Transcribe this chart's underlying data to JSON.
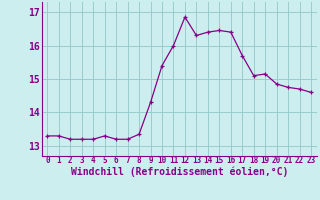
{
  "hours": [
    0,
    1,
    2,
    3,
    4,
    5,
    6,
    7,
    8,
    9,
    10,
    11,
    12,
    13,
    14,
    15,
    16,
    17,
    18,
    19,
    20,
    21,
    22,
    23
  ],
  "windchill": [
    13.3,
    13.3,
    13.2,
    13.2,
    13.2,
    13.3,
    13.2,
    13.2,
    13.35,
    14.3,
    15.4,
    16.0,
    16.85,
    16.3,
    16.4,
    16.45,
    16.4,
    15.7,
    15.1,
    15.15,
    14.85,
    14.75,
    14.7,
    14.6
  ],
  "line_color": "#880088",
  "marker": "+",
  "bg_color": "#cceeee",
  "grid_color": "#99cccc",
  "xlabel": "Windchill (Refroidissement éolien,°C)",
  "xlabel_color": "#880088",
  "tick_color": "#880088",
  "ylim": [
    12.7,
    17.3
  ],
  "yticks": [
    13,
    14,
    15,
    16,
    17
  ],
  "xticks": [
    0,
    1,
    2,
    3,
    4,
    5,
    6,
    7,
    8,
    9,
    10,
    11,
    12,
    13,
    14,
    15,
    16,
    17,
    18,
    19,
    20,
    21,
    22,
    23
  ],
  "xlabel_fontsize": 7.0,
  "ytick_fontsize": 7.0,
  "xtick_fontsize": 5.5
}
